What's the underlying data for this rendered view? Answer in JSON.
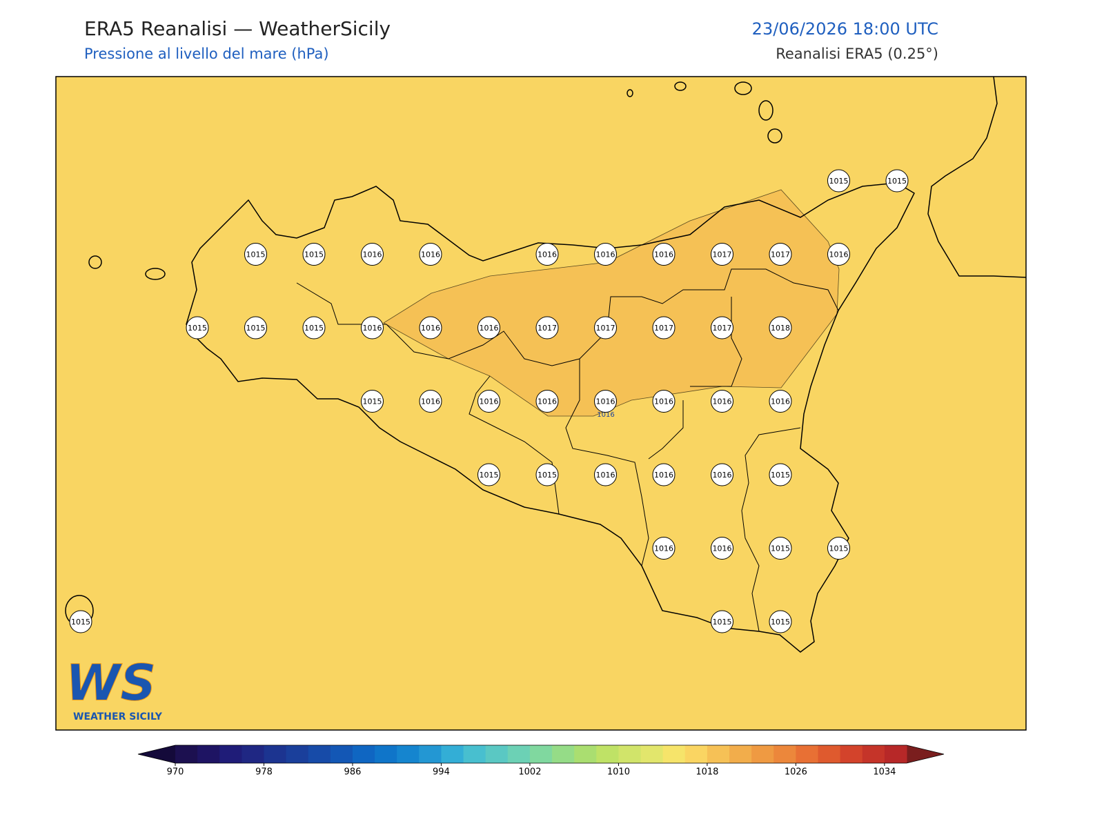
{
  "header": {
    "title": "ERA5 Reanalisi — WeatherSicily",
    "subtitle": "Pressione al livello del mare (hPa)",
    "datetime": "23/06/2026 18:00 UTC",
    "source": "Reanalisi ERA5 (0.25°)"
  },
  "map": {
    "stations": [
      [
        null,
        null,
        null,
        null,
        null,
        null,
        null,
        null,
        null,
        null,
        null,
        null,
        null,
        1015,
        1015
      ],
      [
        null,
        null,
        null,
        1015,
        1015,
        1016,
        1016,
        null,
        1016,
        1016,
        1016,
        1017,
        1017,
        1016,
        null
      ],
      [
        null,
        null,
        1015,
        1015,
        1015,
        1016,
        1016,
        1016,
        1017,
        1017,
        1017,
        1017,
        1018,
        null,
        null
      ],
      [
        null,
        null,
        null,
        null,
        null,
        1015,
        1016,
        1016,
        1016,
        1016,
        1016,
        1016,
        1016,
        null,
        null
      ],
      [
        null,
        null,
        null,
        null,
        null,
        null,
        null,
        1015,
        1015,
        1016,
        1016,
        1016,
        1015,
        null,
        null
      ],
      [
        null,
        null,
        null,
        null,
        null,
        null,
        null,
        null,
        null,
        null,
        1016,
        1016,
        1015,
        1015,
        null
      ],
      [
        1015,
        null,
        null,
        null,
        null,
        null,
        null,
        null,
        null,
        null,
        null,
        1015,
        1015,
        null,
        null
      ]
    ],
    "contour_label": 1016
  },
  "colorbar": {
    "lim": [
      970,
      1036
    ],
    "ticks": [
      970,
      978,
      986,
      994,
      1002,
      1010,
      1018,
      1026,
      1034
    ],
    "colors": [
      "#1c1050",
      "#1e1463",
      "#1f1c78",
      "#1f2783",
      "#1c3490",
      "#1a3f9b",
      "#174ba8",
      "#1357b5",
      "#0f66c2",
      "#0f75c9",
      "#1585cf",
      "#2397d3",
      "#33aed6",
      "#48bfcf",
      "#5ac8c3",
      "#6cd1b5",
      "#80d89f",
      "#95dc87",
      "#aade70",
      "#bfe266",
      "#d1e46a",
      "#e2e66c",
      "#f6e46a",
      "#fad562",
      "#f6c156",
      "#f2ad4b",
      "#ef9a42",
      "#ec873b",
      "#e87034",
      "#df5a2e",
      "#d3432b",
      "#c53429",
      "#b72828"
    ],
    "under_color": "#140a3a",
    "over_color": "#7a1e1e"
  },
  "logo": {
    "text": "WS",
    "caption": "WEATHER SICILY"
  }
}
